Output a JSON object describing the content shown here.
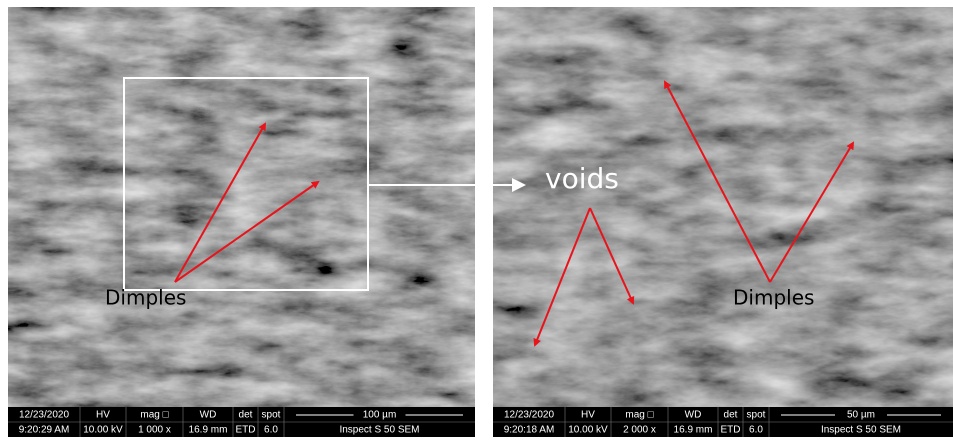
{
  "panels": [
    {
      "labels": [
        "Dimples"
      ],
      "top_row": [
        "12/23/2020",
        "HV",
        "mag □",
        "WD",
        "det",
        "spot",
        "100 µm"
      ],
      "bottom_row": [
        "9:20:29 AM",
        "10.00 kV",
        "1 000 x",
        "16.9 mm",
        "ETD",
        "6.0",
        "Inspect S 50 SEM"
      ]
    },
    {
      "labels": [
        "voids",
        "Dimples"
      ],
      "top_row": [
        "12/23/2020",
        "HV",
        "mag □",
        "WD",
        "det",
        "spot",
        "50 µm"
      ],
      "bottom_row": [
        "9:20:18 AM",
        "10.00 kV",
        "2 000 x",
        "16.9 mm",
        "ETD",
        "6.0",
        "Inspect S 50 SEM"
      ]
    }
  ]
}
